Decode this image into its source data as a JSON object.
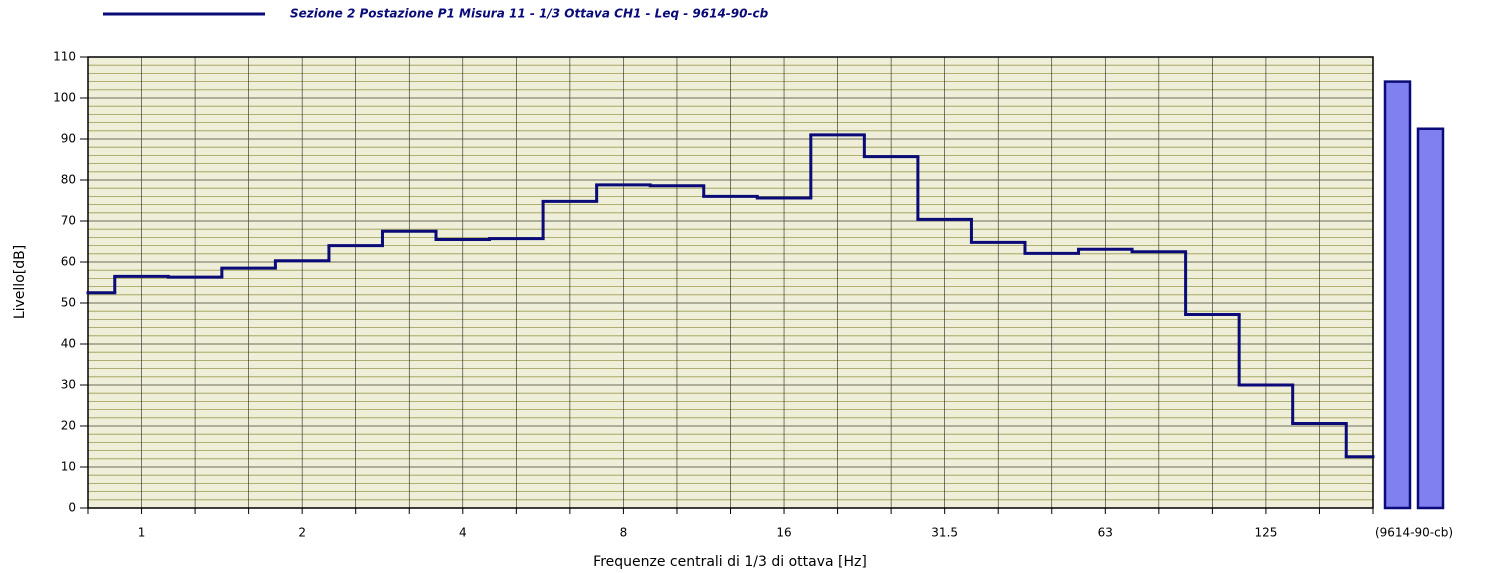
{
  "chart_data": {
    "type": "step",
    "series": [
      {
        "name": "Sezione 2 Postazione P1 Misura 11 - 1/3 Ottava CH1 - Leq - 9614-90-cb",
        "color": "#0a0a78",
        "values": [
          52.5,
          56.5,
          56.3,
          58.5,
          60.3,
          64,
          67.5,
          65.5,
          65.7,
          74.8,
          78.8,
          78.6,
          76,
          75.6,
          91,
          85.7,
          70.4,
          64.8,
          62.1,
          63.1,
          62.5,
          47.2,
          30,
          20.6,
          12.5
        ]
      }
    ],
    "categories": [
      null,
      "1",
      null,
      null,
      "2",
      null,
      null,
      "4",
      null,
      null,
      "8",
      null,
      null,
      "16",
      null,
      null,
      "31.5",
      null,
      null,
      "63",
      null,
      null,
      "125",
      null,
      null
    ],
    "totals": {
      "label": "(9614-90-cb)",
      "values": [
        104,
        92.5
      ],
      "color": "#8080f0"
    },
    "ylim": [
      0,
      110
    ],
    "yticks": [
      0,
      10,
      20,
      30,
      40,
      50,
      60,
      70,
      80,
      90,
      100,
      110
    ],
    "ylabel": "Livello[dB]",
    "xlabel": "Frequenze centrali di 1/3 di ottava [Hz]",
    "grid": true
  }
}
